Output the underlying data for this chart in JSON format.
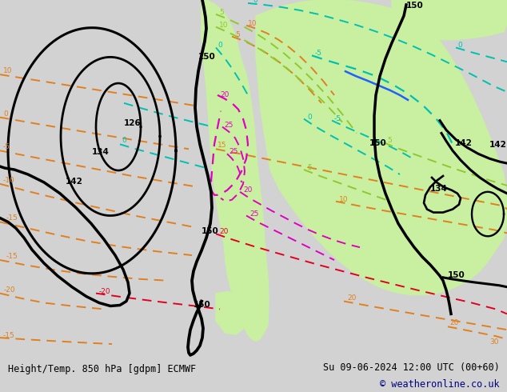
{
  "title_left": "Height/Temp. 850 hPa [gdpm] ECMWF",
  "title_right": "Su 09-06-2024 12:00 UTC (00+60)",
  "copyright": "© weatheronline.co.uk",
  "bg_color": "#d2d2d2",
  "green_color": "#c8f0a0",
  "footer_bg": "#e8e8e8",
  "orange": "#e08020",
  "cyan": "#00c0b0",
  "blue": "#2060ff",
  "lime": "#90c830",
  "magenta": "#e000c0",
  "red": "#e00020",
  "black": "#000000"
}
